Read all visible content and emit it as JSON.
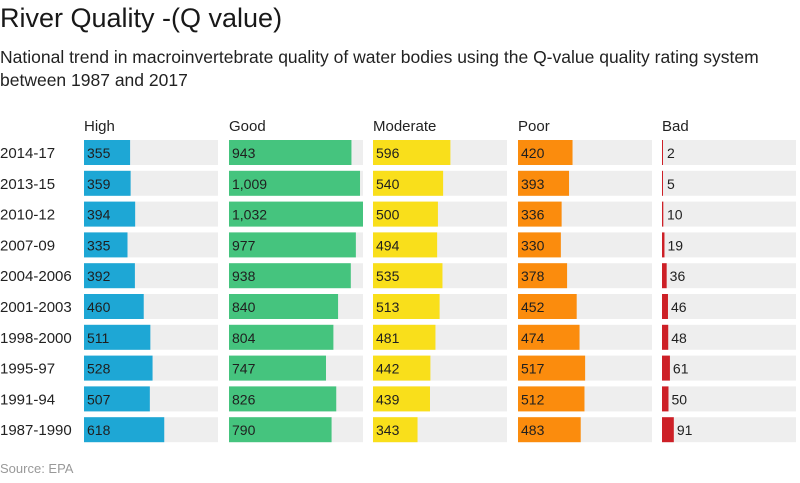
{
  "header": {
    "title": "River Quality -(Q value)",
    "subtitle": "National trend in macroinvertebrate quality of water bodies using the Q-value quality rating system between 1987 and 2017"
  },
  "footer": {
    "source": "Source: EPA"
  },
  "colors": {
    "track": "#eeeeee",
    "High": "#1ea7d5",
    "Good": "#45c47e",
    "Moderate": "#f9df1b",
    "Poor": "#fb8c0d",
    "Bad": "#cd2027",
    "label_text": "#1f1f1f"
  },
  "chart_data": {
    "type": "bar",
    "orientation": "horizontal",
    "layout": "small-multiples",
    "categories": [
      "2014-17",
      "2013-15",
      "2010-12",
      "2007-09",
      "2004-2006",
      "2001-2003",
      "1998-2000",
      "1995-97",
      "1991-94",
      "1987-1990"
    ],
    "series": [
      {
        "name": "High",
        "values": [
          355,
          359,
          394,
          335,
          392,
          460,
          511,
          528,
          507,
          618
        ]
      },
      {
        "name": "Good",
        "values": [
          943,
          1009,
          1032,
          977,
          938,
          840,
          804,
          747,
          826,
          790
        ]
      },
      {
        "name": "Moderate",
        "values": [
          596,
          540,
          500,
          494,
          535,
          513,
          481,
          442,
          439,
          343
        ]
      },
      {
        "name": "Poor",
        "values": [
          420,
          393,
          336,
          330,
          378,
          452,
          474,
          517,
          512,
          483
        ]
      },
      {
        "name": "Bad",
        "values": [
          2,
          5,
          10,
          19,
          36,
          46,
          48,
          61,
          50,
          91
        ]
      }
    ],
    "value_labels": [
      [
        "355",
        "359",
        "394",
        "335",
        "392",
        "460",
        "511",
        "528",
        "507",
        "618"
      ],
      [
        "943",
        "1,009",
        "1,032",
        "977",
        "938",
        "840",
        "804",
        "747",
        "826",
        "790"
      ],
      [
        "596",
        "540",
        "500",
        "494",
        "535",
        "513",
        "481",
        "442",
        "439",
        "343"
      ],
      [
        "420",
        "393",
        "336",
        "330",
        "378",
        "452",
        "474",
        "517",
        "512",
        "483"
      ],
      [
        "2",
        "5",
        "10",
        "19",
        "36",
        "46",
        "48",
        "61",
        "50",
        "91"
      ]
    ],
    "xlim": [
      0,
      1032
    ],
    "grid": false,
    "legend": "column headers",
    "title": "River Quality -(Q value)",
    "subtitle": "National trend in macroinvertebrate quality of water bodies using the Q-value quality rating system between 1987 and 2017"
  }
}
